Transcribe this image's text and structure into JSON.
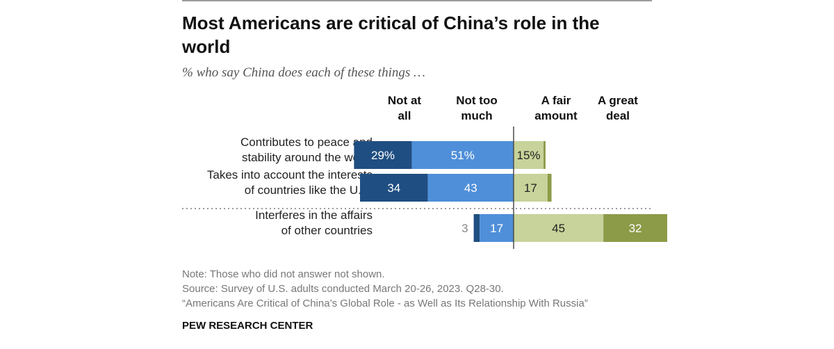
{
  "title": "Most Americans are critical of China’s role in the world",
  "subtitle": "% who say China does each of these things …",
  "notes": {
    "note": "Note: Those who did not answer not shown.",
    "source": "Source: Survey of U.S. adults conducted March 20-26, 2023. Q28-30.",
    "report": "“Americans Are Critical of China’s Global Role - as Well as Its Relationship With Russia”"
  },
  "brand": "PEW RESEARCH CENTER",
  "colors": {
    "not_at_all": "#1f4e82",
    "not_too_much": "#4f8fd9",
    "fair_amount": "#c7d39a",
    "great_deal": "#8c9b48",
    "divider": "#4a4a4a"
  },
  "chart_data": {
    "type": "bar",
    "stacked": true,
    "orientation": "horizontal",
    "diverging": true,
    "categories": [
      "Contributes to peace and stability around the world",
      "Takes into account the interests of countries like the U.S.",
      "Interferes in the affairs of other countries"
    ],
    "series": [
      {
        "name": "Not at all",
        "values": [
          29,
          34,
          3
        ],
        "labels": [
          "29%",
          "34",
          "3"
        ]
      },
      {
        "name": "Not too much",
        "values": [
          51,
          43,
          17
        ],
        "labels": [
          "51%",
          "43",
          "17"
        ]
      },
      {
        "name": "A fair amount",
        "values": [
          15,
          17,
          45
        ],
        "labels": [
          "15%",
          "17",
          "45"
        ]
      },
      {
        "name": "A great deal",
        "values": [
          1,
          2,
          32
        ],
        "labels": [
          "",
          "",
          "32"
        ]
      }
    ]
  }
}
